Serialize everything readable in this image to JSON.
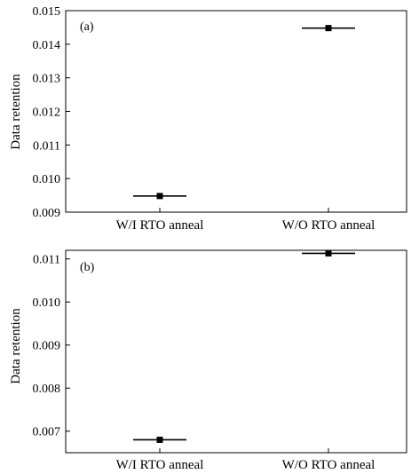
{
  "chart_data": [
    {
      "type": "scatter",
      "panel_label": "(a)",
      "categories": [
        "W/I RTO anneal",
        "W/O RTO anneal"
      ],
      "values": [
        0.00948,
        0.01448
      ],
      "ylabel": "Data retention",
      "ylim": [
        0.009,
        0.015
      ],
      "yticks": [
        0.009,
        0.01,
        0.011,
        0.012,
        0.013,
        0.014,
        0.015
      ],
      "ytick_labels": [
        "0.009",
        "0.010",
        "0.011",
        "0.012",
        "0.013",
        "0.014",
        "0.015"
      ],
      "grid": false,
      "marker": "square with horizontal line",
      "color": "#000000"
    },
    {
      "type": "scatter",
      "panel_label": "(b)",
      "categories": [
        "W/I RTO anneal",
        "W/O RTO anneal"
      ],
      "values": [
        0.0068,
        0.01113
      ],
      "ylabel": "Data retention",
      "ylim": [
        0.0065,
        0.0112
      ],
      "yticks": [
        0.007,
        0.008,
        0.009,
        0.01,
        0.011
      ],
      "ytick_labels": [
        "0.007",
        "0.008",
        "0.009",
        "0.010",
        "0.011"
      ],
      "grid": false,
      "marker": "square with horizontal line",
      "color": "#000000"
    }
  ]
}
